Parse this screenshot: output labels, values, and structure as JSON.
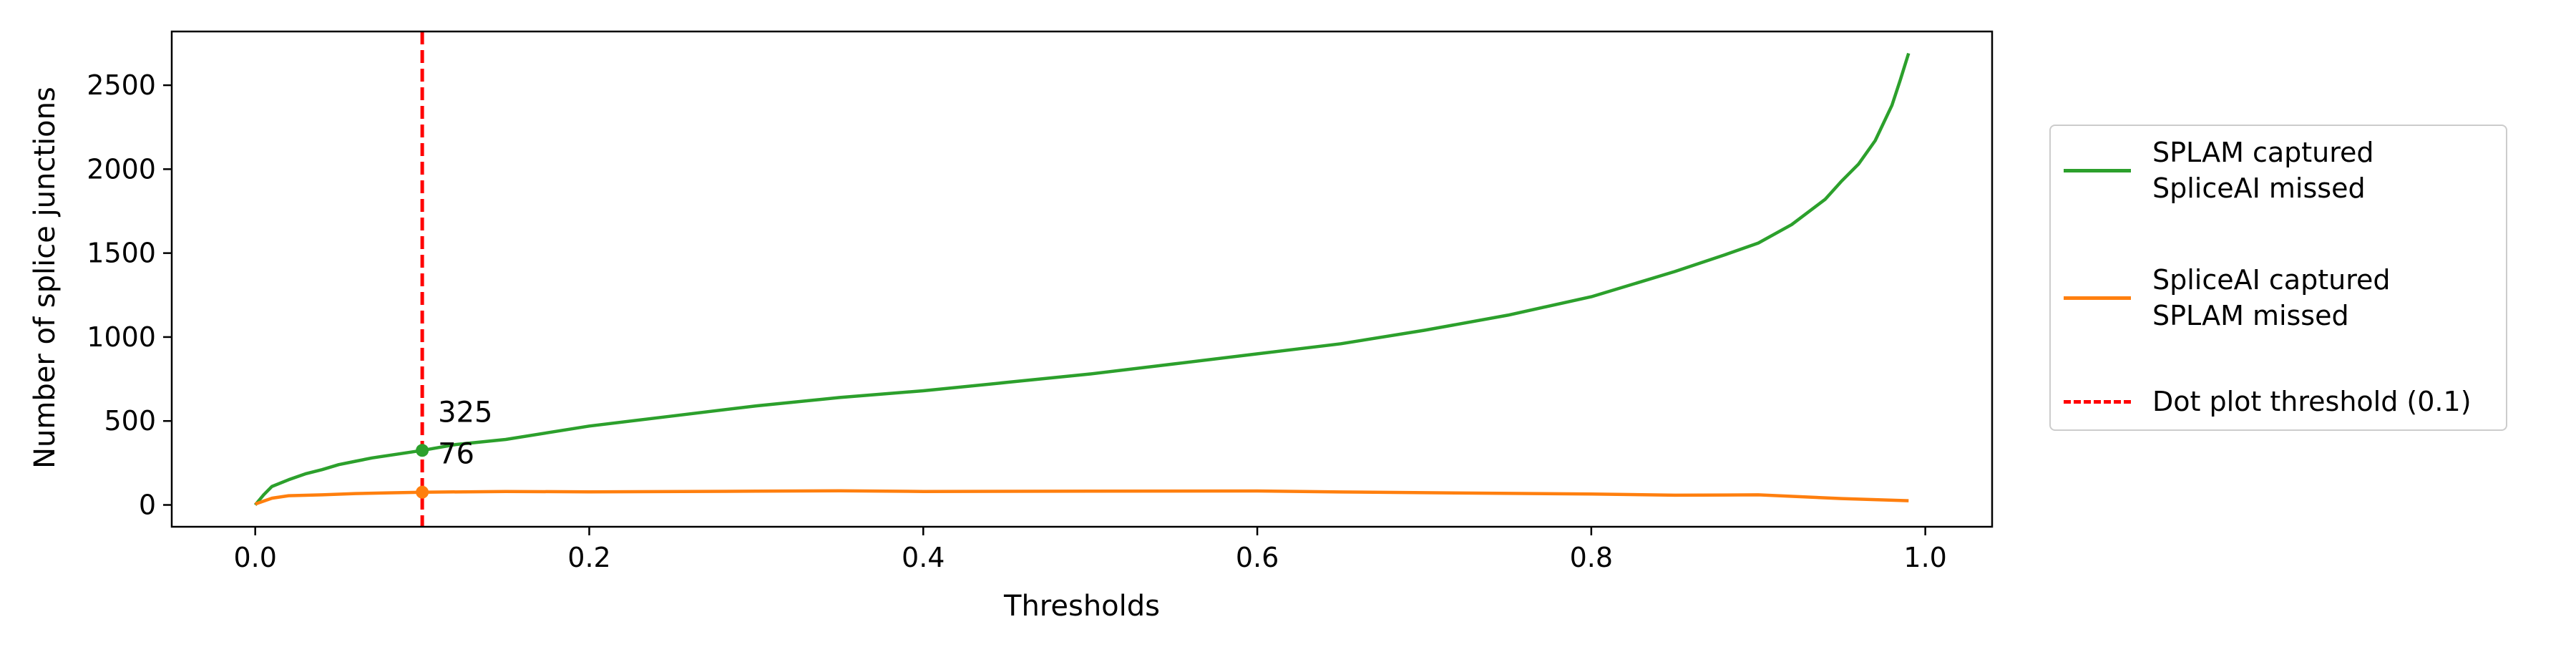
{
  "chart_data": {
    "type": "line",
    "xlabel": "Thresholds",
    "ylabel": "Number of splice junctions",
    "xlim": [
      -0.05,
      1.04
    ],
    "ylim": [
      -130,
      2820
    ],
    "x_ticks": [
      0.0,
      0.2,
      0.4,
      0.6,
      0.8,
      1.0
    ],
    "x_tick_labels": [
      "0.0",
      "0.2",
      "0.4",
      "0.6",
      "0.8",
      "1.0"
    ],
    "y_ticks": [
      0,
      500,
      1000,
      1500,
      2000,
      2500
    ],
    "y_tick_labels": [
      "0",
      "500",
      "1000",
      "1500",
      "2000",
      "2500"
    ],
    "legend_position": "outside-right",
    "series": [
      {
        "name": "SPLAM captured\nSpliceAI missed",
        "color": "#2ca02c",
        "x": [
          0.0,
          0.005,
          0.01,
          0.02,
          0.03,
          0.04,
          0.05,
          0.06,
          0.07,
          0.08,
          0.09,
          0.1,
          0.12,
          0.15,
          0.2,
          0.25,
          0.3,
          0.35,
          0.4,
          0.45,
          0.5,
          0.55,
          0.6,
          0.65,
          0.7,
          0.75,
          0.8,
          0.85,
          0.88,
          0.9,
          0.92,
          0.94,
          0.95,
          0.96,
          0.97,
          0.98,
          0.985,
          0.99
        ],
        "y": [
          0,
          60,
          110,
          150,
          185,
          210,
          240,
          260,
          280,
          295,
          310,
          325,
          360,
          390,
          470,
          530,
          590,
          640,
          680,
          730,
          780,
          840,
          900,
          960,
          1040,
          1130,
          1240,
          1390,
          1490,
          1560,
          1670,
          1820,
          1930,
          2030,
          2170,
          2380,
          2530,
          2690
        ]
      },
      {
        "name": "SpliceAI captured\nSPLAM missed",
        "color": "#ff7f0e",
        "x": [
          0.0,
          0.01,
          0.02,
          0.04,
          0.06,
          0.08,
          0.1,
          0.15,
          0.2,
          0.3,
          0.35,
          0.4,
          0.5,
          0.6,
          0.65,
          0.7,
          0.8,
          0.85,
          0.9,
          0.95,
          0.99
        ],
        "y": [
          5,
          40,
          55,
          60,
          68,
          72,
          76,
          80,
          78,
          82,
          84,
          80,
          82,
          83,
          77,
          73,
          65,
          58,
          60,
          38,
          25
        ]
      }
    ],
    "threshold_line": {
      "x": 0.1,
      "name": "Dot plot threshold (0.1)",
      "color": "#ff0000"
    },
    "annotations": [
      {
        "x": 0.1,
        "y": 325,
        "text": "325",
        "color": "#2ca02c"
      },
      {
        "x": 0.1,
        "y": 76,
        "text": "76",
        "color": "#ff7f0e"
      }
    ]
  }
}
